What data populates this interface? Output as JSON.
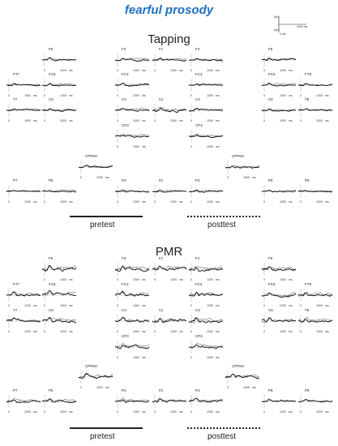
{
  "figure_title": "fearful prosody",
  "scale_bar": {
    "amp_top": "5μV",
    "amp_bottom": "-5μV",
    "time_start": "0 ms",
    "time_end": "1000 ms"
  },
  "axis_ticks": {
    "zero": "0",
    "end": "1000",
    "unit": "ms"
  },
  "sections": [
    {
      "title": "Tapping",
      "legend": {
        "solid": "pretest",
        "dotted": "posttest"
      },
      "panels": [
        {
          "ch": "F5",
          "seed": 1,
          "amp": 0.6
        },
        {
          "ch": "F3",
          "seed": 2,
          "amp": 0.6
        },
        {
          "ch": "Fz",
          "seed": 3,
          "amp": 0.6
        },
        {
          "ch": "F4",
          "seed": 4,
          "amp": 0.6
        },
        {
          "ch": "F6",
          "seed": 5,
          "amp": 0.6
        },
        {
          "ch": "FT7",
          "seed": 6,
          "amp": 0.5
        },
        {
          "ch": "FC5",
          "seed": 7,
          "amp": 0.6
        },
        {
          "ch": "FC3",
          "seed": 8,
          "amp": 0.6
        },
        {
          "ch": "FC4",
          "seed": 9,
          "amp": 0.6
        },
        {
          "ch": "FC6",
          "seed": 10,
          "amp": 0.6
        },
        {
          "ch": "FT8",
          "seed": 11,
          "amp": 0.5
        },
        {
          "ch": "T7",
          "seed": 12,
          "amp": 0.5
        },
        {
          "ch": "C5",
          "seed": 13,
          "amp": 0.6
        },
        {
          "ch": "C3",
          "seed": 14,
          "amp": 0.7
        },
        {
          "ch": "Cz",
          "seed": 15,
          "amp": 0.9
        },
        {
          "ch": "C4",
          "seed": 16,
          "amp": 0.7
        },
        {
          "ch": "C6",
          "seed": 17,
          "amp": 0.6
        },
        {
          "ch": "T8",
          "seed": 18,
          "amp": 0.5
        },
        {
          "ch": "CP3",
          "seed": 19,
          "amp": 0.6
        },
        {
          "ch": "CP4",
          "seed": 20,
          "amp": 0.6
        },
        {
          "ch": "CPP5H",
          "seed": 21,
          "amp": 0.6
        },
        {
          "ch": "CPP6H",
          "seed": 22,
          "amp": 0.6
        },
        {
          "ch": "P7",
          "seed": 23,
          "amp": 0.4
        },
        {
          "ch": "P5",
          "seed": 24,
          "amp": 0.5
        },
        {
          "ch": "P3",
          "seed": 25,
          "amp": 0.5
        },
        {
          "ch": "Pz",
          "seed": 26,
          "amp": 0.5
        },
        {
          "ch": "P4",
          "seed": 27,
          "amp": 0.5
        },
        {
          "ch": "P6",
          "seed": 28,
          "amp": 0.5
        },
        {
          "ch": "P8",
          "seed": 29,
          "amp": 0.4
        }
      ]
    },
    {
      "title": "PMR",
      "legend": {
        "solid": "pretest",
        "dotted": "posttest"
      },
      "panels": [
        {
          "ch": "F5",
          "seed": 31,
          "amp": 1.2
        },
        {
          "ch": "F3",
          "seed": 32,
          "amp": 1.1
        },
        {
          "ch": "Fz",
          "seed": 33,
          "amp": 1.1
        },
        {
          "ch": "F4",
          "seed": 34,
          "amp": 1.0
        },
        {
          "ch": "F6",
          "seed": 35,
          "amp": 1.0
        },
        {
          "ch": "FT7",
          "seed": 36,
          "amp": 0.9
        },
        {
          "ch": "FC5",
          "seed": 37,
          "amp": 1.0
        },
        {
          "ch": "FC3",
          "seed": 38,
          "amp": 1.1
        },
        {
          "ch": "FC4",
          "seed": 39,
          "amp": 1.0
        },
        {
          "ch": "FC6",
          "seed": 40,
          "amp": 1.0
        },
        {
          "ch": "FT8",
          "seed": 41,
          "amp": 0.9
        },
        {
          "ch": "T7",
          "seed": 42,
          "amp": 0.9
        },
        {
          "ch": "C5",
          "seed": 43,
          "amp": 1.0
        },
        {
          "ch": "C3",
          "seed": 44,
          "amp": 1.0
        },
        {
          "ch": "Cz",
          "seed": 45,
          "amp": 1.2
        },
        {
          "ch": "C4",
          "seed": 46,
          "amp": 1.0
        },
        {
          "ch": "C6",
          "seed": 47,
          "amp": 1.0
        },
        {
          "ch": "T8",
          "seed": 48,
          "amp": 0.9
        },
        {
          "ch": "CP3",
          "seed": 49,
          "amp": 0.9
        },
        {
          "ch": "CP4",
          "seed": 50,
          "amp": 0.9
        },
        {
          "ch": "CPP5H",
          "seed": 51,
          "amp": 0.9
        },
        {
          "ch": "CPP6H",
          "seed": 52,
          "amp": 0.9
        },
        {
          "ch": "P7",
          "seed": 53,
          "amp": 0.7
        },
        {
          "ch": "P5",
          "seed": 54,
          "amp": 0.8
        },
        {
          "ch": "P3",
          "seed": 55,
          "amp": 0.8
        },
        {
          "ch": "Pz",
          "seed": 56,
          "amp": 0.8
        },
        {
          "ch": "P4",
          "seed": 57,
          "amp": 0.8
        },
        {
          "ch": "P6",
          "seed": 58,
          "amp": 0.8
        },
        {
          "ch": "P8",
          "seed": 59,
          "amp": 0.7
        }
      ]
    }
  ]
}
